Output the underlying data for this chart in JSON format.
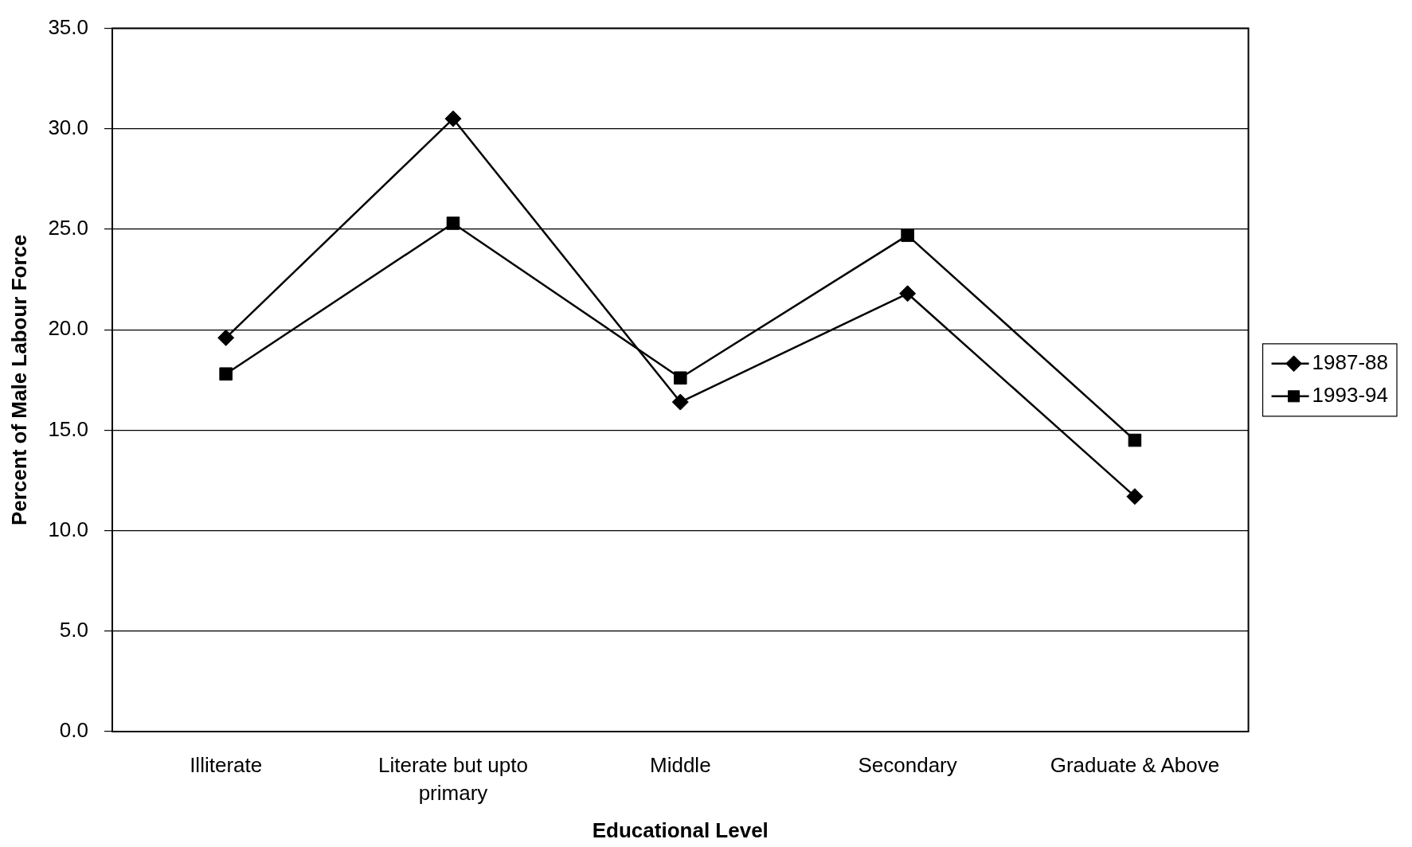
{
  "chart_data": {
    "type": "line",
    "xlabel": "Educational Level",
    "ylabel": "Percent of Male Labour Force",
    "categories": [
      "Illiterate",
      "Literate but upto primary",
      "Middle",
      "Secondary",
      "Graduate & Above"
    ],
    "series": [
      {
        "name": "1987-88",
        "color": "#000000",
        "marker": "diamond",
        "values": [
          19.6,
          30.5,
          16.4,
          21.8,
          11.7
        ]
      },
      {
        "name": "1993-94",
        "color": "#000000",
        "marker": "square",
        "values": [
          17.8,
          25.3,
          17.6,
          24.7,
          14.5
        ]
      }
    ],
    "ylim": [
      0,
      35
    ],
    "yticks": [
      {
        "value": 0,
        "label": "0.0"
      },
      {
        "value": 5,
        "label": "5.0"
      },
      {
        "value": 10,
        "label": "10.0"
      },
      {
        "value": 15,
        "label": "15.0"
      },
      {
        "value": 20,
        "label": "20.0"
      },
      {
        "value": 25,
        "label": "25.0"
      },
      {
        "value": 30,
        "label": "30.0"
      },
      {
        "value": 35,
        "label": "35.0"
      }
    ],
    "grid": "y",
    "legend": "right",
    "line_style": "solid"
  }
}
